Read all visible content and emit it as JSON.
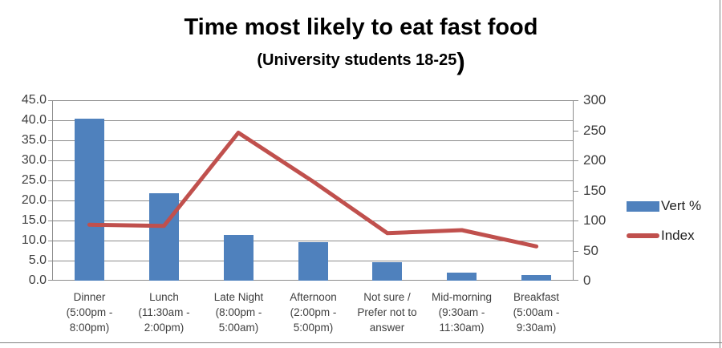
{
  "chart_data": {
    "type": "bar+line",
    "title": "Time most likely to eat fast food",
    "subtitle": "(University students 18-25)",
    "subtitle_text": "(University students 18-25",
    "subtitle_close": ")",
    "categories": [
      "Dinner (5:00pm - 8:00pm)",
      "Lunch (11:30am - 2:00pm)",
      "Late Night (8:00pm - 5:00am)",
      "Afternoon (2:00pm - 5:00pm)",
      "Not sure / Prefer not to answer",
      "Mid-morning (9:30am - 11:30am)",
      "Breakfast (5:00am - 9:30am)"
    ],
    "category_lines": [
      [
        "Dinner",
        "(5:00pm -",
        "8:00pm)"
      ],
      [
        "Lunch",
        "(11:30am -",
        "2:00pm)"
      ],
      [
        "Late Night",
        "(8:00pm -",
        "5:00am)"
      ],
      [
        "Afternoon",
        "(2:00pm -",
        "5:00pm)"
      ],
      [
        "Not sure /",
        "Prefer not to",
        "answer"
      ],
      [
        "Mid-morning",
        "(9:30am -",
        "11:30am)"
      ],
      [
        "Breakfast",
        "(5:00am -",
        "9:30am)"
      ]
    ],
    "series": [
      {
        "name": "Vert %",
        "type": "bar",
        "axis": "left",
        "color": "#4f81bd",
        "values": [
          40.4,
          21.8,
          11.5,
          9.5,
          4.5,
          1.9,
          1.3
        ]
      },
      {
        "name": "Index",
        "type": "line",
        "axis": "right",
        "color": "#c0504d",
        "values": [
          93,
          91,
          246,
          165,
          79,
          84,
          57
        ]
      }
    ],
    "left_axis": {
      "min": 0,
      "max": 45,
      "step": 5,
      "tick_labels": [
        "0.0",
        "5.0",
        "10.0",
        "15.0",
        "20.0",
        "25.0",
        "30.0",
        "35.0",
        "40.0",
        "45.0"
      ]
    },
    "right_axis": {
      "min": 0,
      "max": 300,
      "step": 50,
      "tick_labels": [
        "0",
        "50",
        "100",
        "150",
        "200",
        "250",
        "300"
      ]
    },
    "grid": true,
    "legend_position": "right"
  }
}
